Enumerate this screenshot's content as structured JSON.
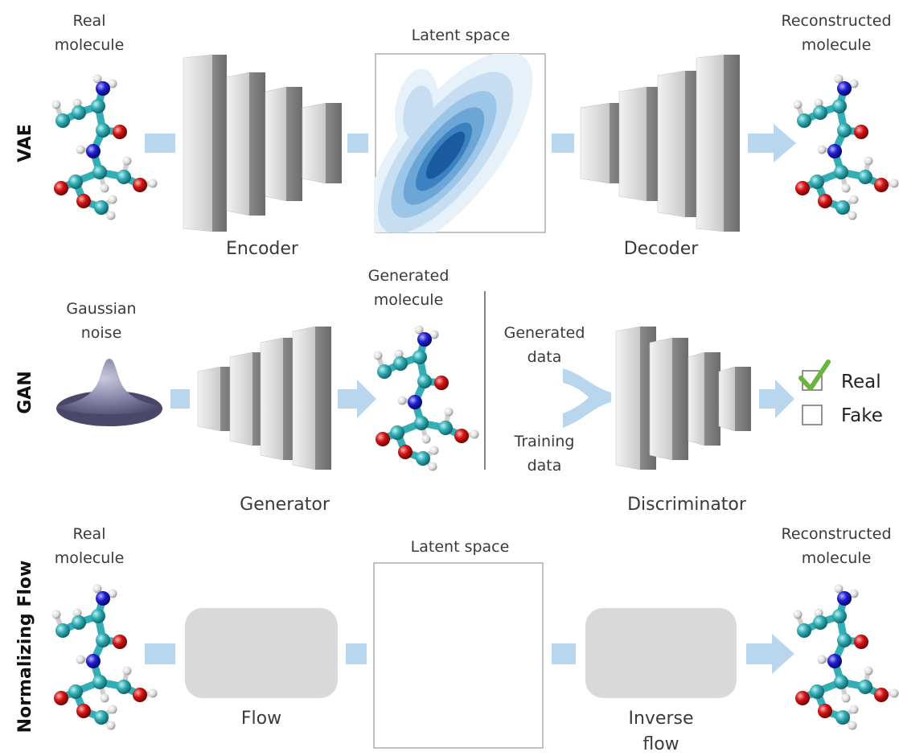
{
  "rows": {
    "vae": {
      "row_label": "VAE",
      "input_label": [
        "Real",
        "molecule"
      ],
      "encoder_label": "Encoder",
      "latent_label": "Latent space",
      "decoder_label": "Decoder",
      "output_label": [
        "Reconstructed",
        "molecule"
      ]
    },
    "gan": {
      "row_label": "GAN",
      "noise_label": [
        "Gaussian",
        "noise"
      ],
      "generator_label": "Generator",
      "generated_label": [
        "Generated",
        "molecule"
      ],
      "generated_data_label": [
        "Generated",
        "data"
      ],
      "training_data_label": [
        "Training",
        "data"
      ],
      "discriminator_label": "Discriminator",
      "outputs": [
        {
          "label": "Real",
          "checked": true
        },
        {
          "label": "Fake",
          "checked": false
        }
      ]
    },
    "flow": {
      "row_label": "Normalizing Flow",
      "input_label": [
        "Real",
        "molecule"
      ],
      "flow_label": "Flow",
      "latent_label": "Latent space",
      "inverse_label": [
        "Inverse",
        "flow"
      ],
      "output_label": [
        "Reconstructed",
        "molecule"
      ]
    }
  },
  "colors": {
    "arrow": "#b9d6ef",
    "block_light": "#d4d4d4",
    "block_dark": "#7b7b7b",
    "flow_box": "#d9d9d9",
    "carbon": "#33aeb5",
    "oxygen": "#d21414",
    "nitrogen": "#1f1fd2",
    "hydrogen": "#e4e4e4",
    "check": "#6cb33f",
    "latent_levels": [
      "#e6f1fa",
      "#c7def2",
      "#9cc6e7",
      "#6ba6d6",
      "#3c82c0",
      "#1a5a9e"
    ]
  }
}
